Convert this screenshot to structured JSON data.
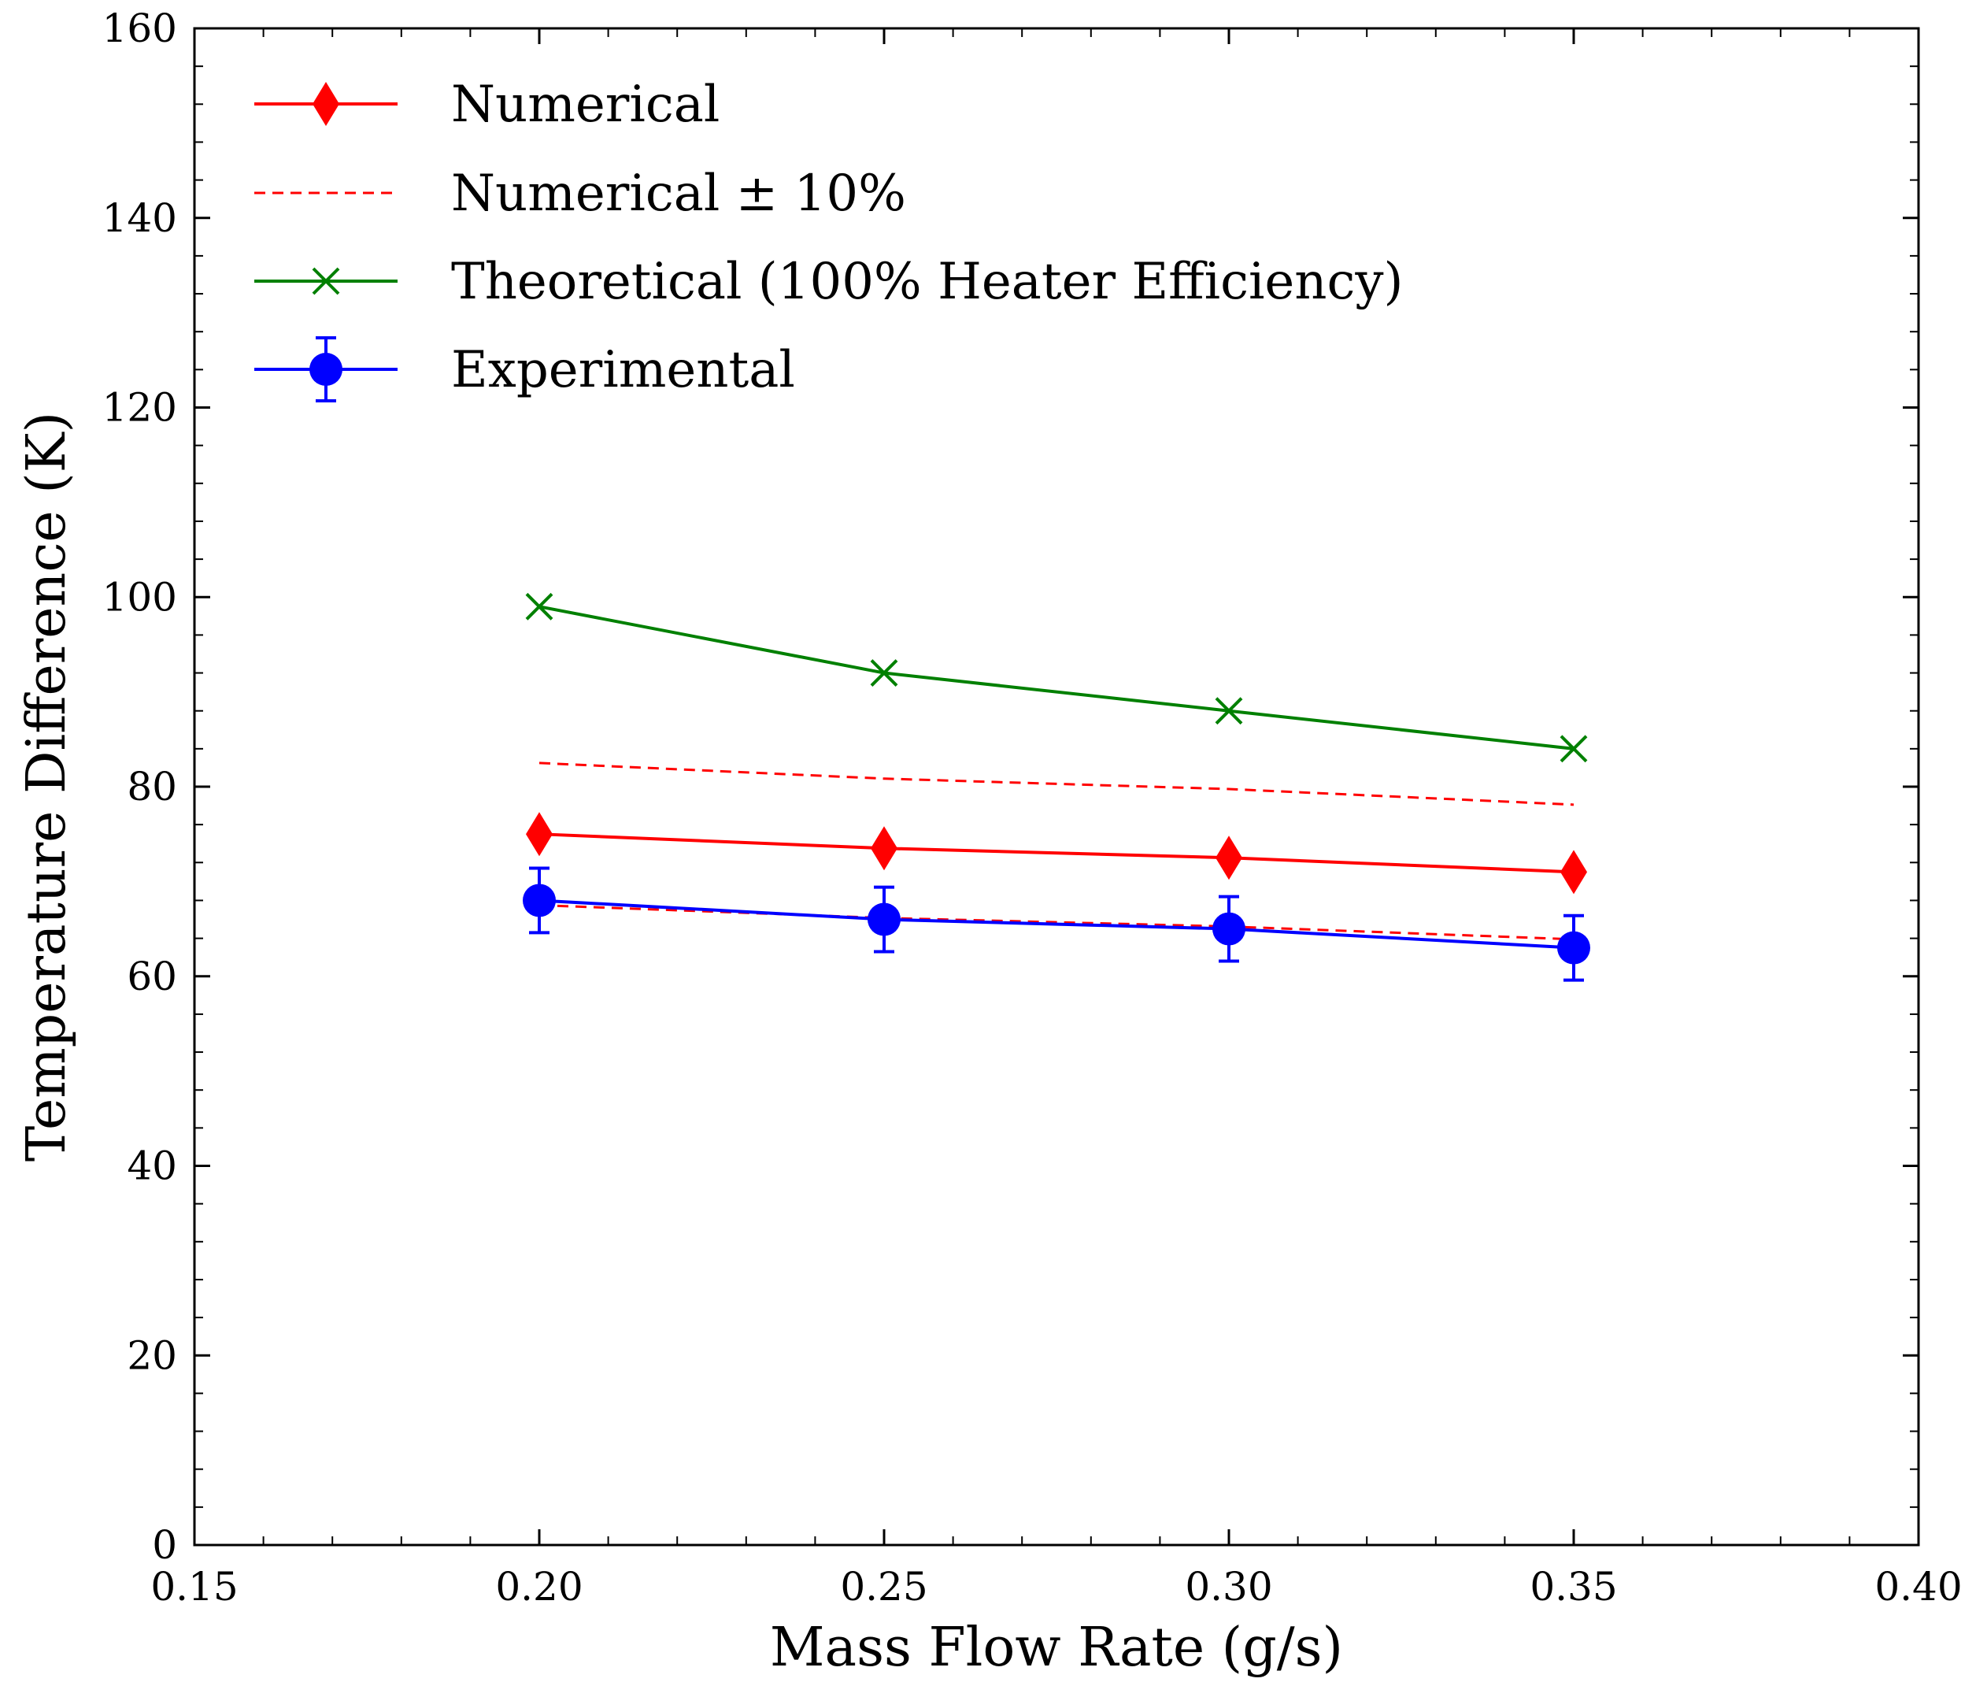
{
  "chart_data": {
    "type": "line",
    "title": "",
    "xlabel": "Mass Flow Rate (g/s)",
    "ylabel": "Temperature Difference (K)",
    "xlim": [
      0.15,
      0.4
    ],
    "ylim": [
      0,
      160
    ],
    "xticks": [
      0.15,
      0.2,
      0.25,
      0.3,
      0.35,
      0.4
    ],
    "xtick_labels": [
      "0.15",
      "0.20",
      "0.25",
      "0.30",
      "0.35",
      "0.40"
    ],
    "yticks": [
      0,
      20,
      40,
      60,
      80,
      100,
      120,
      140,
      160
    ],
    "ytick_labels": [
      "0",
      "20",
      "40",
      "60",
      "80",
      "100",
      "120",
      "140",
      "160"
    ],
    "legend_position": "top-left",
    "grid": false,
    "x": [
      0.2,
      0.25,
      0.3,
      0.35
    ],
    "series": [
      {
        "name": "Numerical",
        "values": [
          75,
          73.5,
          72.5,
          71
        ],
        "color": "#ff0000",
        "style": "solid",
        "marker": "diamond"
      },
      {
        "name": "Numerical ± 10%",
        "upper": [
          82.5,
          80.85,
          79.75,
          78.1
        ],
        "lower": [
          67.5,
          66.15,
          65.25,
          63.9
        ],
        "color": "#ff0000",
        "style": "dashed",
        "marker": "none"
      },
      {
        "name": "Theoretical (100% Heater Efficiency)",
        "values": [
          99,
          92,
          88,
          84
        ],
        "color": "#008000",
        "style": "solid",
        "marker": "x"
      },
      {
        "name": "Experimental",
        "values": [
          68,
          66,
          65,
          63
        ],
        "error": [
          3.4,
          3.4,
          3.4,
          3.4
        ],
        "color": "#0000ff",
        "style": "solid",
        "marker": "circle"
      }
    ]
  }
}
